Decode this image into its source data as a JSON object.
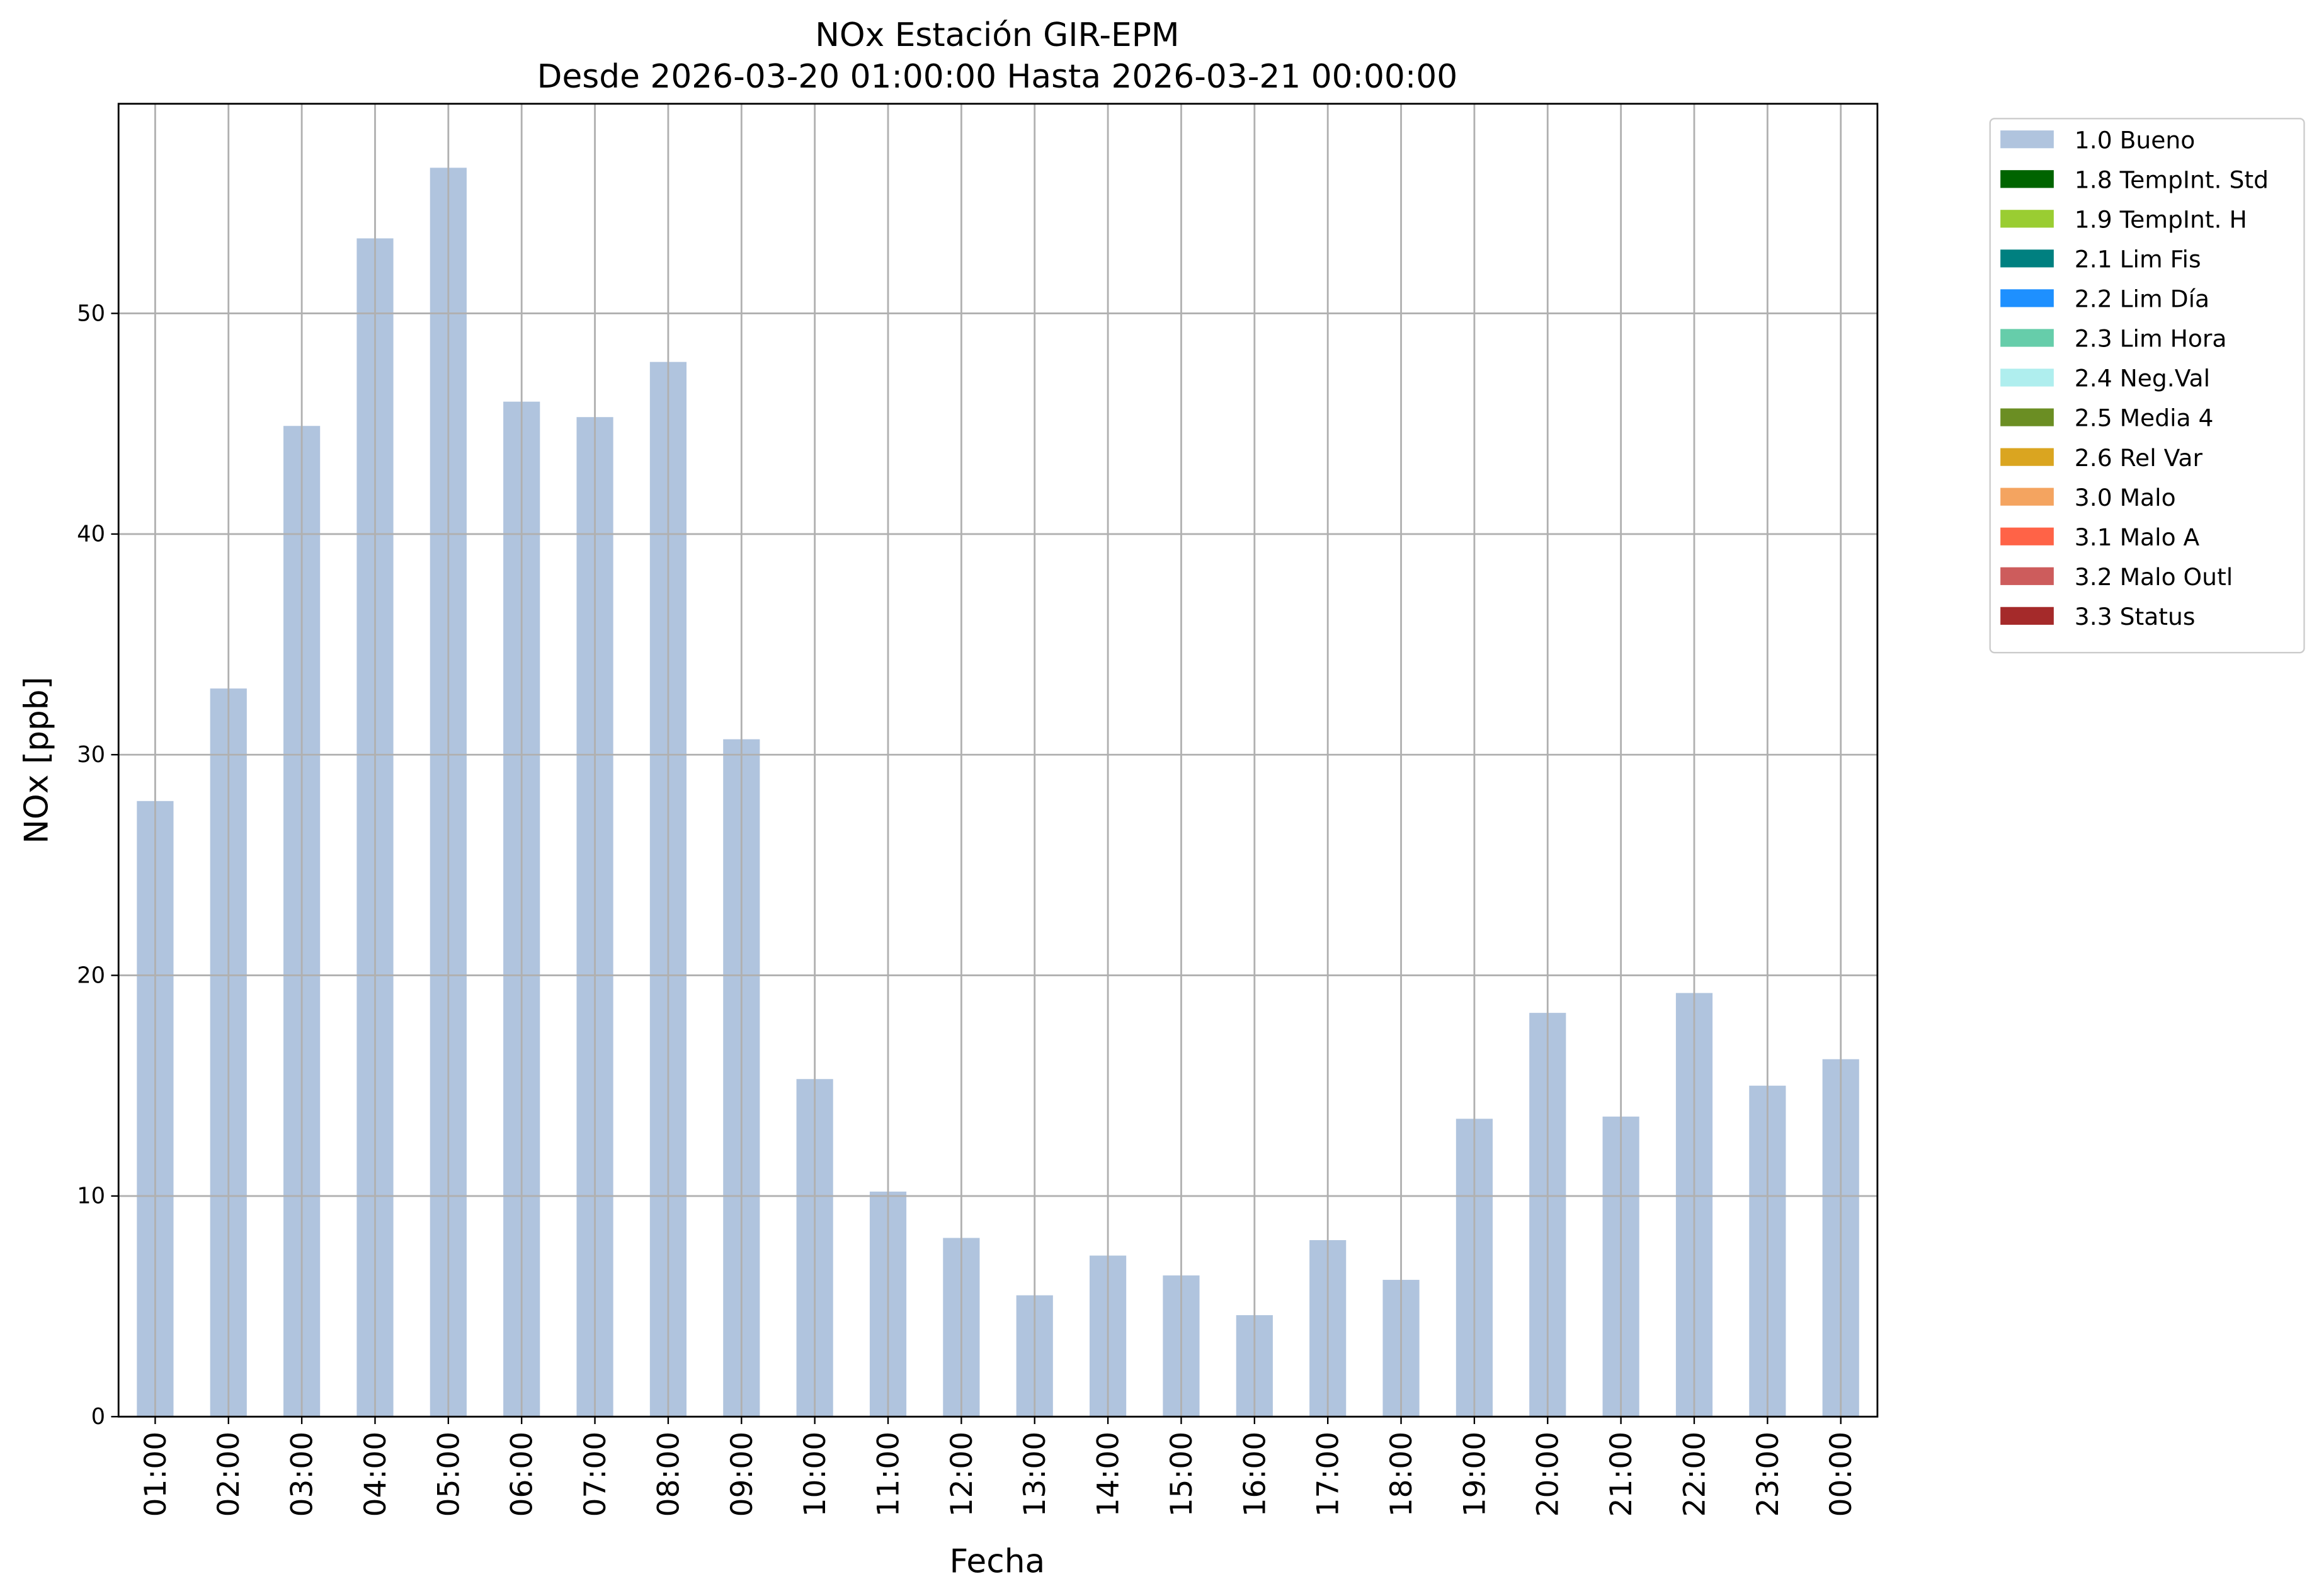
{
  "chart_data": {
    "type": "bar",
    "title": "NOx Estación GIR-EPM",
    "subtitle": "Desde 2026-03-20 01:00:00 Hasta 2026-03-21 00:00:00",
    "x_label": "Fecha",
    "y_label": "NOx [ppb]",
    "categories": [
      "01:00",
      "02:00",
      "03:00",
      "04:00",
      "05:00",
      "06:00",
      "07:00",
      "08:00",
      "09:00",
      "10:00",
      "11:00",
      "12:00",
      "13:00",
      "14:00",
      "15:00",
      "16:00",
      "17:00",
      "18:00",
      "19:00",
      "20:00",
      "21:00",
      "22:00",
      "23:00",
      "00:00"
    ],
    "series": [
      {
        "name": "1.0 Bueno",
        "color": "#b0c4de",
        "values": [
          27.9,
          33.0,
          44.9,
          53.4,
          56.6,
          46.0,
          45.3,
          47.8,
          30.7,
          15.3,
          10.2,
          8.1,
          5.5,
          7.3,
          6.4,
          4.6,
          8.0,
          6.2,
          13.5,
          18.3,
          13.6,
          19.2,
          15.0,
          16.2
        ]
      }
    ],
    "extra_legend": [
      {
        "name": "1.8 TempInt. Std",
        "color": "#006400"
      },
      {
        "name": "1.9 TempInt. H",
        "color": "#9acd32"
      },
      {
        "name": "2.1 Lim Fis",
        "color": "#008080"
      },
      {
        "name": "2.2 Lim Día",
        "color": "#1e90ff"
      },
      {
        "name": "2.3 Lim Hora",
        "color": "#66cdaa"
      },
      {
        "name": "2.4 Neg.Val",
        "color": "#afeeee"
      },
      {
        "name": "2.5 Media 4",
        "color": "#6b8e23"
      },
      {
        "name": "2.6 Rel Var",
        "color": "#daa520"
      },
      {
        "name": "3.0 Malo",
        "color": "#f4a460"
      },
      {
        "name": "3.1 Malo A",
        "color": "#ff6347"
      },
      {
        "name": "3.2 Malo Outl",
        "color": "#cd5c5c"
      },
      {
        "name": "3.3 Status",
        "color": "#a52a2a"
      }
    ],
    "ylim": [
      0,
      59.5
    ],
    "yticks": [
      0,
      10,
      20,
      30,
      40,
      50
    ],
    "grid": true,
    "legend_position": "outside right"
  }
}
